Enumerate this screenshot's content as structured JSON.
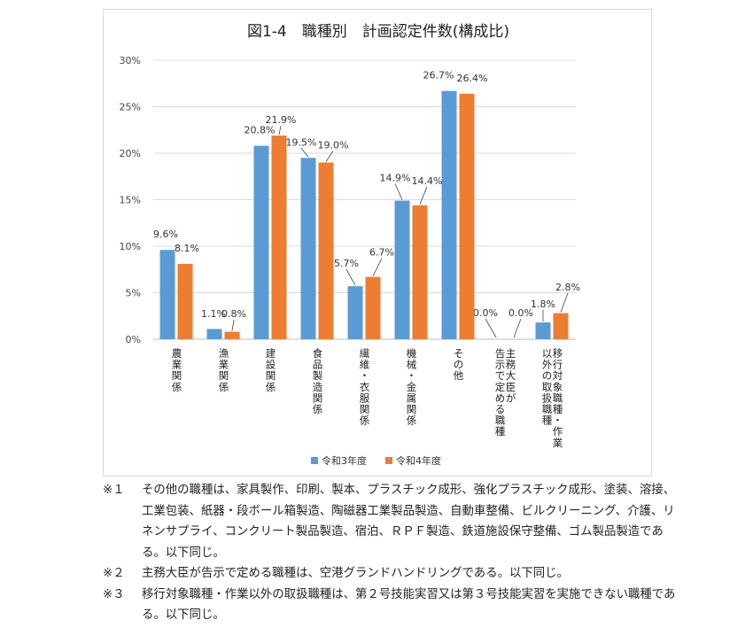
{
  "chart_data": {
    "type": "bar",
    "title": "図1-4　職種別　計画認定件数(構成比)",
    "ylim": [
      0,
      30
    ],
    "yticks": [
      "0%",
      "5%",
      "10%",
      "15%",
      "20%",
      "25%",
      "30%"
    ],
    "grid": true,
    "legend_position": "bottom",
    "categories": [
      "農業関係",
      "漁業関係",
      "建設関係",
      "食品製造関係",
      "繊維・衣服関係",
      "機械・金属関係",
      "その他",
      "主務大臣が告示で定める職種",
      "移行対象職種・作業以外の取扱職種"
    ],
    "category_columns": [
      [
        "農業関係"
      ],
      [
        "漁業関係"
      ],
      [
        "建設関係"
      ],
      [
        "食品製造関係"
      ],
      [
        "繊維・衣服関係"
      ],
      [
        "機械・金属関係"
      ],
      [
        "その他"
      ],
      [
        "主務大臣が",
        "告示で定める職種"
      ],
      [
        "移行対象職種・作業",
        "以外の取扱職種"
      ]
    ],
    "series": [
      {
        "name": "令和3年度",
        "color": "#5b9bd5",
        "values": [
          9.6,
          1.1,
          20.8,
          19.5,
          5.7,
          14.9,
          26.7,
          0.0,
          1.8
        ],
        "labels": [
          "9.6%",
          "1.1%",
          "20.8%",
          "19.5%",
          "5.7%",
          "14.9%",
          "26.7%",
          "0.0%",
          "1.8%"
        ]
      },
      {
        "name": "令和4年度",
        "color": "#ed7d31",
        "values": [
          8.1,
          0.8,
          21.9,
          19.0,
          6.7,
          14.4,
          26.4,
          0.0,
          2.8
        ],
        "labels": [
          "8.1%",
          "0.8%",
          "21.9%",
          "19.0%",
          "6.7%",
          "14.4%",
          "26.4%",
          "0.0%",
          "2.8%"
        ]
      }
    ]
  },
  "notes": [
    {
      "mark": "※１",
      "text": "その他の職種は、家具製作、印刷、製本、プラスチック成形、強化プラスチック成形、塗装、溶接、工業包装、紙器・段ボール箱製造、陶磁器工業製品製造、自動車整備、ビルクリーニング、介護、リネンサプライ、コンクリート製品製造、宿泊、ＲＰＦ製造、鉄道施設保守整備、ゴム製品製造である。以下同じ。"
    },
    {
      "mark": "※２",
      "text": "主務大臣が告示で定める職種は、空港グランドハンドリングである。以下同じ。"
    },
    {
      "mark": "※３",
      "text": "移行対象職種・作業以外の取扱職種は、第２号技能実習又は第３号技能実習を実施できない職種である。以下同じ。"
    }
  ]
}
